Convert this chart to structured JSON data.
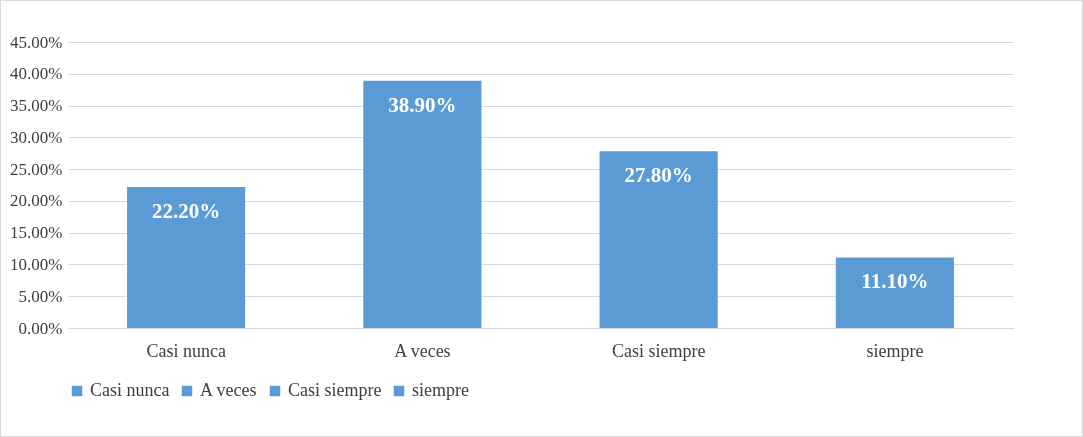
{
  "chart_data": {
    "type": "bar",
    "categories": [
      "Casi nunca",
      "A veces",
      "Casi siempre",
      "siempre"
    ],
    "series": [
      {
        "name": "Casi nunca",
        "color": "#5b9bd5",
        "values": [
          22.2,
          null,
          null,
          null
        ],
        "value_labels": [
          "22.20%",
          null,
          null,
          null
        ]
      },
      {
        "name": "A veces",
        "color": "#5b9bd5",
        "values": [
          null,
          38.9,
          null,
          null
        ],
        "value_labels": [
          null,
          "38.90%",
          null,
          null
        ]
      },
      {
        "name": "Casi siempre",
        "color": "#5b9bd5",
        "values": [
          null,
          null,
          27.8,
          null
        ],
        "value_labels": [
          null,
          null,
          "27.80%",
          null
        ]
      },
      {
        "name": "siempre",
        "color": "#5b9bd5",
        "values": [
          null,
          null,
          null,
          11.1
        ],
        "value_labels": [
          null,
          null,
          null,
          "11.10%"
        ]
      }
    ],
    "ylim": [
      0,
      45
    ],
    "yticks": [
      {
        "value": 0,
        "label": "0.00%"
      },
      {
        "value": 5,
        "label": "5.00%"
      },
      {
        "value": 10,
        "label": "10.00%"
      },
      {
        "value": 15,
        "label": "15.00%"
      },
      {
        "value": 20,
        "label": "20.00%"
      },
      {
        "value": 25,
        "label": "25.00%"
      },
      {
        "value": 30,
        "label": "30.00%"
      },
      {
        "value": 35,
        "label": "35.00%"
      },
      {
        "value": 40,
        "label": "40.00%"
      },
      {
        "value": 45,
        "label": "45.00%"
      }
    ],
    "grid": "y",
    "legend": "bottom"
  }
}
